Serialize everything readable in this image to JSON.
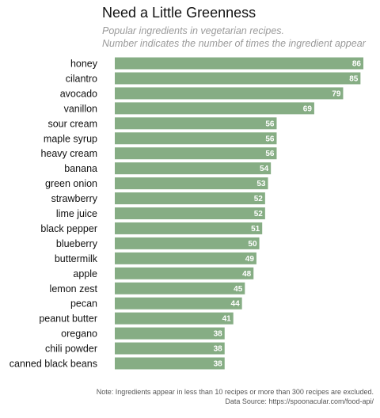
{
  "chart_data": {
    "type": "bar",
    "orientation": "horizontal",
    "title": "Need a Little Greenness",
    "subtitle_lines": [
      "Popular ingredients in vegetarian recipes.",
      "Number indicates the number of times the ingredient appear"
    ],
    "categories": [
      "honey",
      "cilantro",
      "avocado",
      "vanillon",
      "sour cream",
      "maple syrup",
      "heavy cream",
      "banana",
      "green onion",
      "strawberry",
      "lime juice",
      "black pepper",
      "blueberry",
      "buttermilk",
      "apple",
      "lemon zest",
      "pecan",
      "peanut butter",
      "oregano",
      "chili powder",
      "canned black beans"
    ],
    "values": [
      86,
      85,
      79,
      69,
      56,
      56,
      56,
      54,
      53,
      52,
      52,
      51,
      50,
      49,
      48,
      45,
      44,
      41,
      38,
      38,
      38
    ],
    "xlim": [
      0,
      86
    ],
    "grid": false,
    "bar_color": "#86ad84",
    "caption_lines": [
      "Note: Ingredients appear in less than 10 recipes or more than 300 recipes are excluded.",
      "Data Source: https://spoonacular.com/food-api/"
    ]
  }
}
